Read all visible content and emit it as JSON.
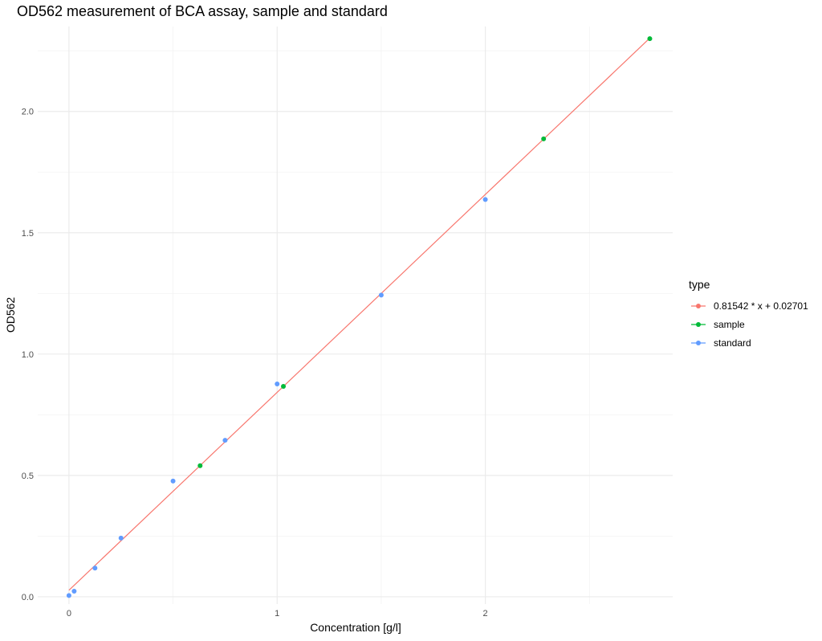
{
  "chart_data": {
    "type": "scatter",
    "title": "OD562 measurement of BCA assay, sample and standard",
    "xlabel": "Concentration [g/l]",
    "ylabel": "OD562",
    "xlim": [
      -0.15,
      2.9
    ],
    "ylim": [
      -0.03,
      2.35
    ],
    "xticks": [
      0,
      1,
      2
    ],
    "yticks": [
      0.0,
      0.5,
      1.0,
      1.5,
      2.0
    ],
    "xtick_labels": [
      "0",
      "1",
      "2"
    ],
    "ytick_labels": [
      "0.0",
      "0.5",
      "1.0",
      "1.5",
      "2.0"
    ],
    "grid": true,
    "legend": {
      "title": "type",
      "position": "right",
      "entries": [
        {
          "label": "0.81542 * x + 0.02701",
          "color": "#F8766D"
        },
        {
          "label": "sample",
          "color": "#00BA38"
        },
        {
          "label": "standard",
          "color": "#619CFF"
        }
      ]
    },
    "series": [
      {
        "name": "0.81542 * x + 0.02701",
        "kind": "line",
        "color": "#F8766D",
        "slope": 0.81542,
        "intercept": 0.02701,
        "x": [
          0,
          2.79
        ]
      },
      {
        "name": "sample",
        "kind": "scatter",
        "color": "#00BA38",
        "x": [
          0.63,
          1.03,
          2.28,
          2.79
        ],
        "y": [
          0.54,
          0.867,
          1.887,
          2.3
        ]
      },
      {
        "name": "standard",
        "kind": "scatter",
        "color": "#619CFF",
        "x": [
          0,
          0.025,
          0.125,
          0.25,
          0.5,
          0.75,
          1.0,
          1.5,
          2.0
        ],
        "y": [
          0.005,
          0.023,
          0.118,
          0.242,
          0.477,
          0.645,
          0.877,
          1.243,
          1.637
        ]
      }
    ]
  }
}
